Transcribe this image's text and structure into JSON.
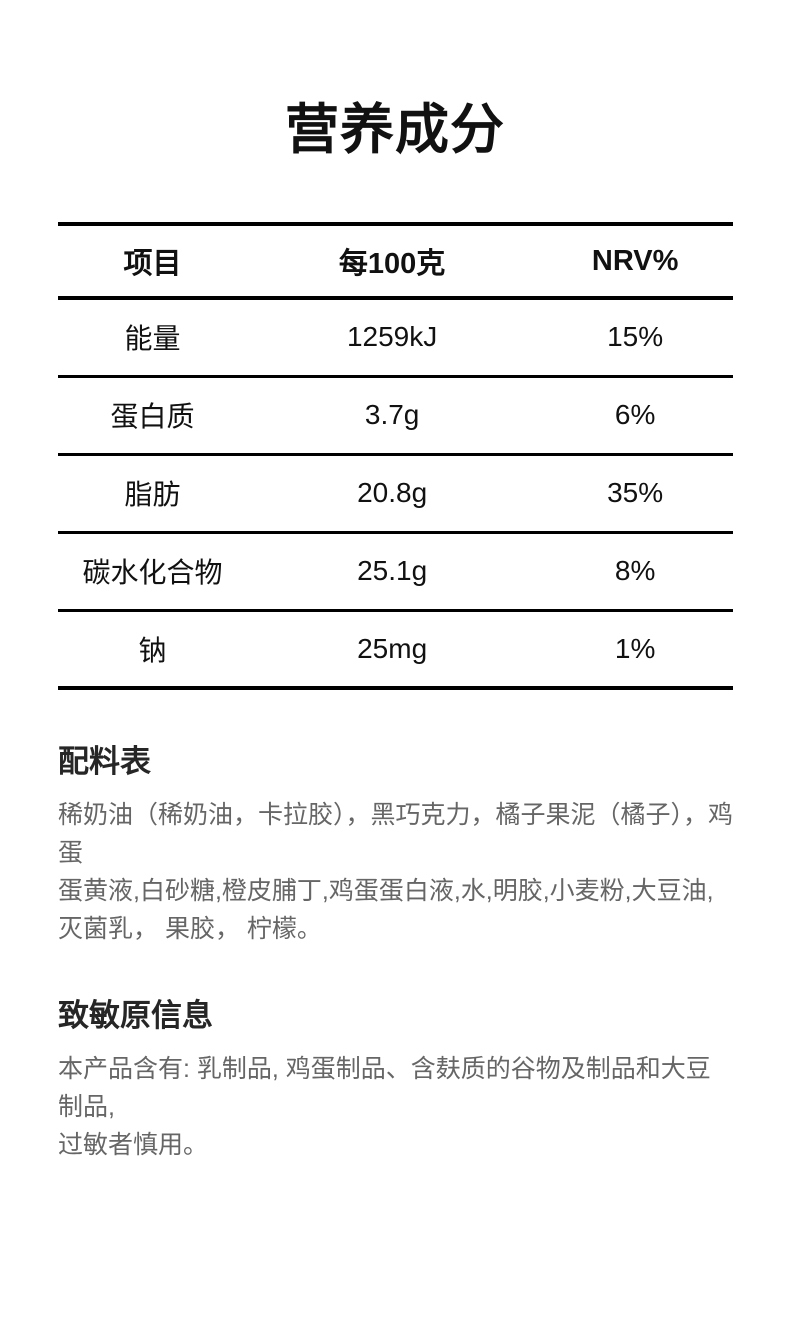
{
  "title": "营养成分",
  "nutrition_table": {
    "headers": [
      "项目",
      "每100克",
      "NRV%"
    ],
    "rows": [
      {
        "item": "能量",
        "per100g": "1259kJ",
        "nrv": "15%"
      },
      {
        "item": "蛋白质",
        "per100g": "3.7g",
        "nrv": "6%"
      },
      {
        "item": "脂肪",
        "per100g": "20.8g",
        "nrv": "35%"
      },
      {
        "item": "碳水化合物",
        "per100g": "25.1g",
        "nrv": "8%"
      },
      {
        "item": "钠",
        "per100g": "25mg",
        "nrv": "1%"
      }
    ]
  },
  "ingredients": {
    "heading": "配料表",
    "lines": [
      "稀奶油（稀奶油，卡拉胶），黑巧克力，橘子果泥（橘子），鸡蛋",
      "蛋黄液,白砂糖,橙皮脯丁,鸡蛋蛋白液,水,明胶,小麦粉,大豆油,",
      "灭菌乳， 果胶， 柠檬。"
    ]
  },
  "allergen": {
    "heading": "致敏原信息",
    "lines": [
      "本产品含有: 乳制品, 鸡蛋制品、含麸质的谷物及制品和大豆制品,",
      "过敏者慎用。"
    ]
  },
  "colors": {
    "background": "#ffffff",
    "table_text": "#111111",
    "table_border": "#000000",
    "heading_text": "#262626",
    "body_text": "#666666"
  }
}
